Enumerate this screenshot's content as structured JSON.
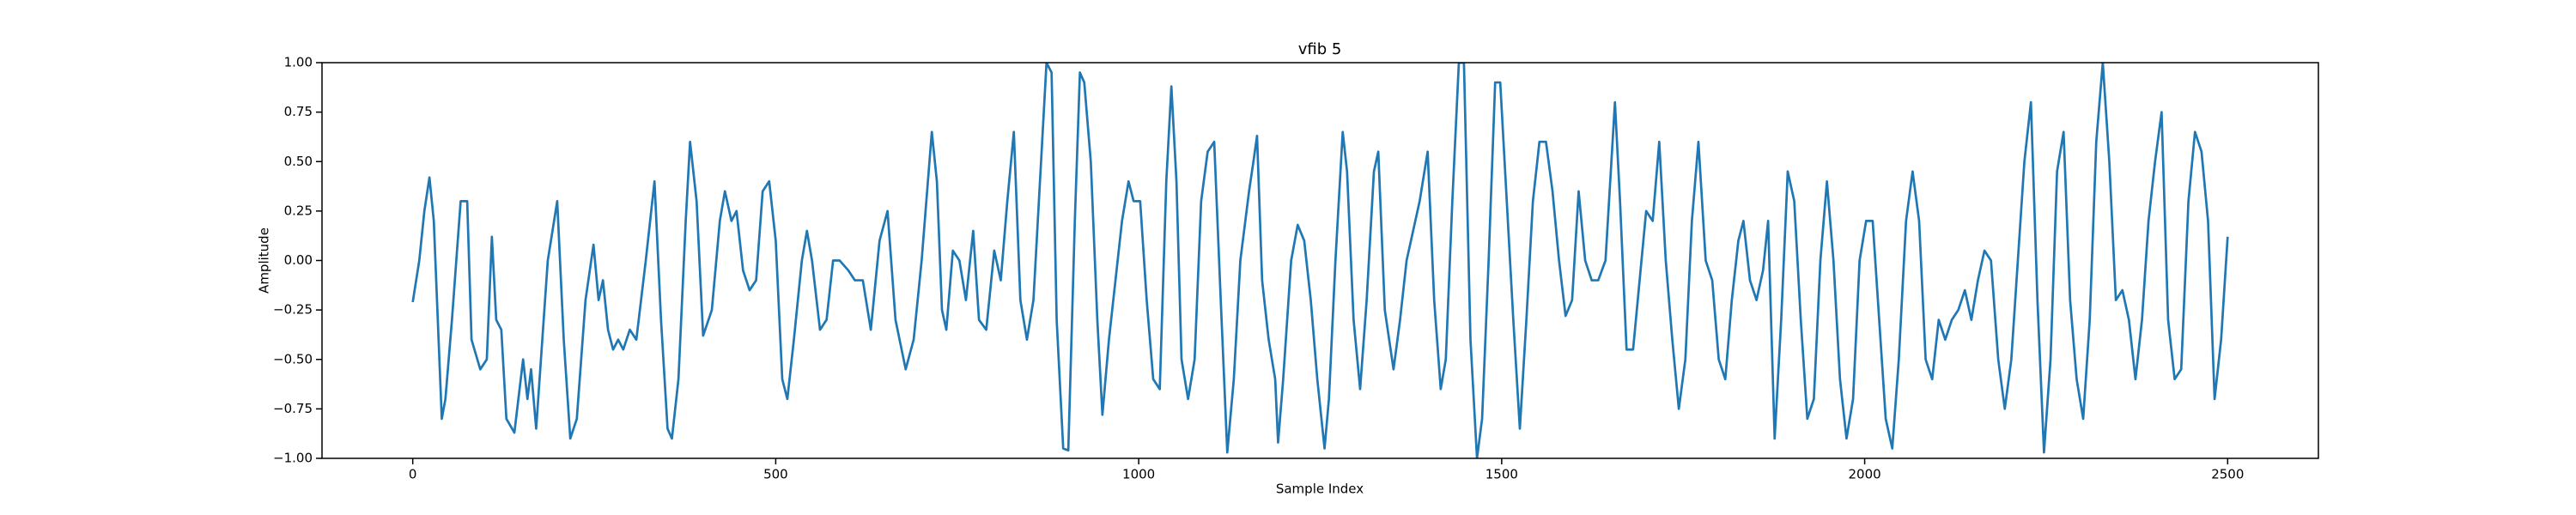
{
  "chart_data": {
    "type": "line",
    "title": "vfib 5",
    "xlabel": "Sample Index",
    "ylabel": "Amplitude",
    "color": "#1f77b4",
    "xlim": [
      -125,
      2625
    ],
    "ylim": [
      -1,
      1
    ],
    "xticks": [
      0,
      500,
      1000,
      1500,
      2000,
      2500
    ],
    "yticks": [
      {
        "value": -1,
        "label": "−1.00"
      },
      {
        "value": -0.75,
        "label": "−0.75"
      },
      {
        "value": -0.5,
        "label": "−0.50"
      },
      {
        "value": -0.25,
        "label": "−0.25"
      },
      {
        "value": 0,
        "label": "0.00"
      },
      {
        "value": 0.25,
        "label": "0.25"
      },
      {
        "value": 0.5,
        "label": "0.50"
      },
      {
        "value": 0.75,
        "label": "0.75"
      },
      {
        "value": 1,
        "label": "1.00"
      }
    ],
    "x": [
      0,
      9,
      16,
      23,
      29,
      40,
      45,
      54,
      66,
      75,
      81,
      93,
      102,
      109,
      115,
      122,
      129,
      140,
      152,
      158,
      163,
      170,
      186,
      199,
      208,
      217,
      226,
      238,
      249,
      256,
      262,
      269,
      276,
      283,
      290,
      299,
      308,
      321,
      333,
      342,
      351,
      357,
      366,
      376,
      382,
      391,
      400,
      412,
      423,
      430,
      439,
      446,
      455,
      464,
      473,
      482,
      491,
      500,
      509,
      516,
      525,
      536,
      543,
      550,
      561,
      570,
      579,
      588,
      600,
      609,
      620,
      631,
      643,
      654,
      665,
      679,
      690,
      701,
      715,
      722,
      729,
      735,
      744,
      753,
      762,
      772,
      780,
      790,
      801,
      810,
      819,
      828,
      837,
      846,
      855,
      867,
      873,
      880,
      887,
      896,
      903,
      912,
      919,
      925,
      934,
      943,
      950,
      959,
      968,
      977,
      986,
      993,
      1002,
      1011,
      1020,
      1029,
      1038,
      1045,
      1052,
      1059,
      1068,
      1077,
      1086,
      1095,
      1104,
      1113,
      1122,
      1131,
      1140,
      1152,
      1158,
      1163,
      1170,
      1179,
      1188,
      1192,
      1199,
      1210,
      1219,
      1228,
      1237,
      1246,
      1256,
      1262,
      1271,
      1281,
      1287,
      1296,
      1305,
      1314,
      1324,
      1330,
      1339,
      1351,
      1360,
      1369,
      1378,
      1387,
      1398,
      1407,
      1416,
      1423,
      1432,
      1441,
      1448,
      1457,
      1466,
      1473,
      1482,
      1491,
      1498,
      1507,
      1516,
      1525,
      1534,
      1543,
      1552,
      1561,
      1570,
      1579,
      1588,
      1597,
      1606,
      1615,
      1624,
      1633,
      1643,
      1656,
      1663,
      1672,
      1681,
      1690,
      1699,
      1708,
      1717,
      1726,
      1735,
      1744,
      1753,
      1762,
      1771,
      1781,
      1790,
      1799,
      1808,
      1817,
      1826,
      1833,
      1842,
      1851,
      1860,
      1867,
      1876,
      1885,
      1894,
      1903,
      1912,
      1921,
      1930,
      1939,
      1948,
      1957,
      1966,
      1975,
      1984,
      1993,
      2002,
      2011,
      2020,
      2029,
      2038,
      2047,
      2057,
      2066,
      2075,
      2084,
      2093,
      2102,
      2111,
      2120,
      2129,
      2138,
      2147,
      2156,
      2165,
      2174,
      2184,
      2193,
      2202,
      2211,
      2220,
      2229,
      2238,
      2247,
      2256,
      2265,
      2274,
      2283,
      2292,
      2301,
      2310,
      2319,
      2328,
      2337,
      2346,
      2355,
      2364,
      2373,
      2382,
      2391,
      2400,
      2409,
      2418,
      2427,
      2436,
      2446,
      2455,
      2464,
      2473,
      2482,
      2491,
      2500
    ],
    "values": [
      -0.21,
      0.0,
      0.25,
      0.42,
      0.2,
      -0.8,
      -0.7,
      -0.3,
      0.3,
      0.3,
      -0.4,
      -0.55,
      -0.5,
      0.12,
      -0.3,
      -0.35,
      -0.8,
      -0.87,
      -0.5,
      -0.7,
      -0.55,
      -0.85,
      0.0,
      0.3,
      -0.4,
      -0.9,
      -0.8,
      -0.2,
      0.08,
      -0.2,
      -0.1,
      -0.35,
      -0.45,
      -0.4,
      -0.45,
      -0.35,
      -0.4,
      0.0,
      0.4,
      -0.3,
      -0.85,
      -0.9,
      -0.6,
      0.2,
      0.6,
      0.3,
      -0.38,
      -0.25,
      0.2,
      0.35,
      0.2,
      0.25,
      -0.05,
      -0.15,
      -0.1,
      0.35,
      0.4,
      0.1,
      -0.6,
      -0.7,
      -0.4,
      0.0,
      0.15,
      0.0,
      -0.35,
      -0.3,
      0.0,
      0.0,
      -0.05,
      -0.1,
      -0.1,
      -0.35,
      0.1,
      0.25,
      -0.3,
      -0.55,
      -0.4,
      0.0,
      0.65,
      0.4,
      -0.25,
      -0.35,
      0.05,
      0.0,
      -0.2,
      0.15,
      -0.3,
      -0.35,
      0.05,
      -0.1,
      0.3,
      0.65,
      -0.2,
      -0.4,
      -0.2,
      0.6,
      1.0,
      0.95,
      -0.3,
      -0.95,
      -0.96,
      0.2,
      0.95,
      0.9,
      0.5,
      -0.3,
      -0.78,
      -0.4,
      -0.1,
      0.2,
      0.4,
      0.3,
      0.3,
      -0.2,
      -0.6,
      -0.65,
      0.4,
      0.88,
      0.4,
      -0.5,
      -0.7,
      -0.5,
      0.3,
      0.55,
      0.6,
      -0.2,
      -0.97,
      -0.6,
      0.0,
      0.35,
      0.5,
      0.63,
      -0.1,
      -0.4,
      -0.6,
      -0.92,
      -0.6,
      0.0,
      0.18,
      0.1,
      -0.2,
      -0.6,
      -0.95,
      -0.7,
      0.0,
      0.65,
      0.45,
      -0.3,
      -0.65,
      -0.2,
      0.45,
      0.55,
      -0.25,
      -0.55,
      -0.3,
      0.0,
      0.15,
      0.3,
      0.55,
      -0.2,
      -0.65,
      -0.5,
      0.3,
      1.0,
      1.0,
      -0.4,
      -1.0,
      -0.8,
      0.0,
      0.9,
      0.9,
      0.3,
      -0.3,
      -0.85,
      -0.3,
      0.3,
      0.6,
      0.6,
      0.35,
      0.0,
      -0.28,
      -0.2,
      0.35,
      0.0,
      -0.1,
      -0.1,
      0.0,
      0.8,
      0.3,
      -0.45,
      -0.45,
      -0.1,
      0.25,
      0.2,
      0.6,
      0.0,
      -0.4,
      -0.75,
      -0.5,
      0.2,
      0.6,
      0.0,
      -0.1,
      -0.5,
      -0.6,
      -0.2,
      0.1,
      0.2,
      -0.1,
      -0.2,
      -0.05,
      0.2,
      -0.9,
      -0.3,
      0.45,
      0.3,
      -0.3,
      -0.8,
      -0.7,
      0.0,
      0.4,
      0.0,
      -0.6,
      -0.9,
      -0.7,
      0.0,
      0.2,
      0.2,
      -0.3,
      -0.8,
      -0.95,
      -0.5,
      0.2,
      0.45,
      0.2,
      -0.5,
      -0.6,
      -0.3,
      -0.4,
      -0.3,
      -0.25,
      -0.15,
      -0.3,
      -0.1,
      0.05,
      0.0,
      -0.5,
      -0.75,
      -0.5,
      0.0,
      0.5,
      0.8,
      -0.2,
      -0.97,
      -0.5,
      0.45,
      0.65,
      -0.2,
      -0.6,
      -0.8,
      -0.3,
      0.6,
      1.0,
      0.5,
      -0.2,
      -0.15,
      -0.3,
      -0.6,
      -0.3,
      0.2,
      0.5,
      0.75,
      -0.3,
      -0.6,
      -0.55,
      0.3,
      0.65,
      0.55,
      0.2,
      -0.7,
      -0.4,
      0.12
    ]
  }
}
